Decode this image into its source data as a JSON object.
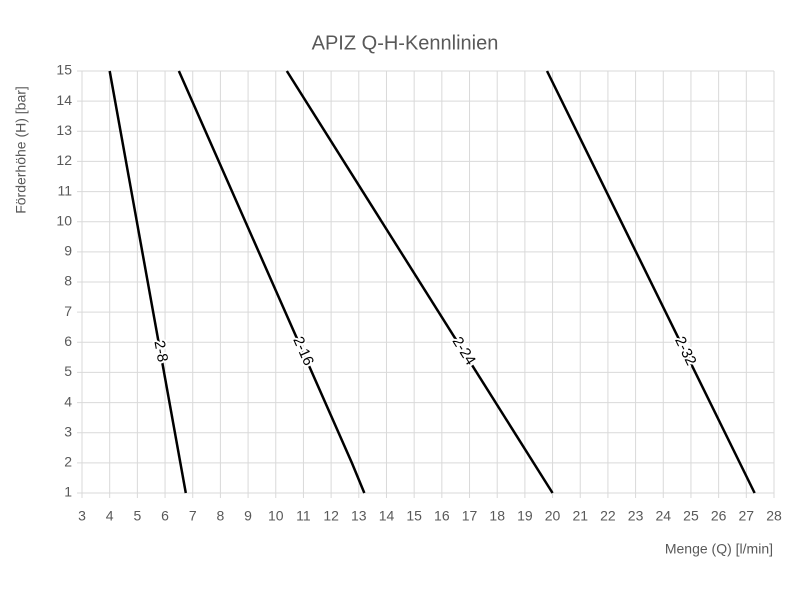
{
  "chart_data": {
    "type": "line",
    "title": "APIZ Q-H-Kennlinien",
    "x_label": "Menge (Q) [l/min]",
    "y_label": "Förderhöhe (H) [bar]",
    "xlim": [
      3,
      28
    ],
    "xticks": [
      3,
      4,
      5,
      6,
      7,
      8,
      9,
      10,
      11,
      12,
      13,
      14,
      15,
      16,
      17,
      18,
      19,
      20,
      21,
      22,
      23,
      24,
      25,
      26,
      27,
      28
    ],
    "ylim": [
      1,
      15
    ],
    "yticks": [
      1,
      2,
      3,
      4,
      5,
      6,
      7,
      8,
      9,
      10,
      11,
      12,
      13,
      14,
      15
    ],
    "grid": true,
    "series": [
      {
        "name": "2-8",
        "color": "#000000",
        "x": [
          4.0,
          6.75
        ],
        "values": [
          15,
          1
        ]
      },
      {
        "name": "2-16",
        "color": "#000000",
        "x": [
          6.5,
          12.75,
          13.2
        ],
        "values": [
          15,
          2,
          1
        ]
      },
      {
        "name": "2-24",
        "color": "#000000",
        "x": [
          10.4,
          20.0
        ],
        "values": [
          15,
          1
        ]
      },
      {
        "name": "2-32",
        "color": "#000000",
        "x": [
          19.8,
          27.3
        ],
        "values": [
          15,
          1
        ]
      }
    ]
  }
}
